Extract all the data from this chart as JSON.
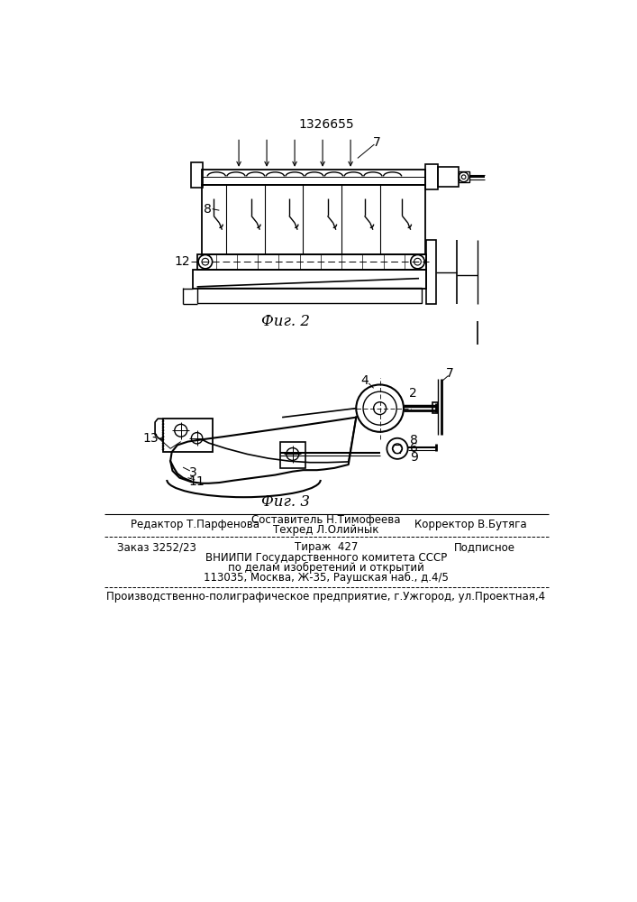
{
  "patent_number": "1326655",
  "fig2_caption": "Фиг. 2",
  "fig3_caption": "Фиг. 3",
  "background_color": "#ffffff",
  "line_color": "#000000",
  "editor_line": "Редактор Т.Парфенова",
  "compiler_line1": "Составитель Н.Тимофеева",
  "compiler_line2": "Техред Л.Олийнык",
  "corrector_line": "Корректор В.Бутяга",
  "order_line": "Заказ 3252/23",
  "print_run_line": "Тираж  427",
  "signed_line": "Подписное",
  "vniipи_line1": "ВНИИПИ Государственного комитета СССР",
  "vniipи_line2": "по делам изобретений и открытий",
  "vniipи_line3": "113035, Москва, Ж-35, Раушская наб., д.4/5",
  "factory_line": "Производственно-полиграфическое предприятие, г.Ужгород, ул.Проектная,4"
}
